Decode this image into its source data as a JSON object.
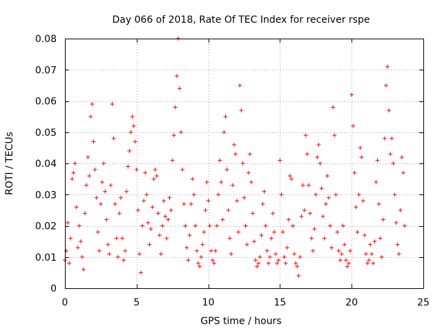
{
  "chart_data": {
    "type": "scatter",
    "title": "Day 066 of 2018, Rate Of TEC Index for receiver rspe",
    "xlabel": "GPS time / hours",
    "ylabel": "ROTI / TECUs",
    "xlim": [
      0,
      25
    ],
    "ylim": [
      0,
      0.08
    ],
    "x_ticks": [
      0,
      5,
      10,
      15,
      20,
      25
    ],
    "x_tick_labels": [
      "0",
      "5",
      "10",
      "15",
      "20",
      "25"
    ],
    "y_ticks": [
      0,
      0.01,
      0.02,
      0.03,
      0.04,
      0.05,
      0.06,
      0.07,
      0.08
    ],
    "y_tick_labels": [
      "0",
      "0.01",
      "0.02",
      "0.03",
      "0.04",
      "0.05",
      "0.06",
      "0.07",
      "0.08"
    ],
    "grid": true,
    "marker": "+",
    "marker_color": "#ff0000",
    "series": [
      {
        "name": "rspe",
        "points": [
          [
            0.0,
            0.009
          ],
          [
            0.1,
            0.012
          ],
          [
            0.2,
            0.021
          ],
          [
            0.3,
            0.008
          ],
          [
            0.4,
            0.016
          ],
          [
            0.5,
            0.035
          ],
          [
            0.6,
            0.037
          ],
          [
            0.7,
            0.04
          ],
          [
            0.8,
            0.026
          ],
          [
            0.9,
            0.013
          ],
          [
            1.0,
            0.02
          ],
          [
            1.1,
            0.015
          ],
          [
            1.2,
            0.01
          ],
          [
            1.3,
            0.006
          ],
          [
            1.4,
            0.024
          ],
          [
            1.5,
            0.033
          ],
          [
            1.6,
            0.042
          ],
          [
            1.7,
            0.036
          ],
          [
            1.8,
            0.055
          ],
          [
            1.9,
            0.059
          ],
          [
            2.0,
            0.047
          ],
          [
            2.1,
            0.038
          ],
          [
            2.2,
            0.029
          ],
          [
            2.3,
            0.018
          ],
          [
            2.4,
            0.012
          ],
          [
            2.5,
            0.027
          ],
          [
            2.6,
            0.034
          ],
          [
            2.7,
            0.04
          ],
          [
            2.8,
            0.031
          ],
          [
            2.9,
            0.022
          ],
          [
            3.0,
            0.014
          ],
          [
            3.1,
            0.011
          ],
          [
            3.2,
            0.033
          ],
          [
            3.3,
            0.059
          ],
          [
            3.4,
            0.048
          ],
          [
            3.5,
            0.027
          ],
          [
            3.6,
            0.016
          ],
          [
            3.7,
            0.01
          ],
          [
            3.8,
            0.024
          ],
          [
            3.9,
            0.029
          ],
          [
            4.0,
            0.016
          ],
          [
            4.1,
            0.009
          ],
          [
            4.2,
            0.012
          ],
          [
            4.3,
            0.031
          ],
          [
            4.4,
            0.039
          ],
          [
            4.5,
            0.044
          ],
          [
            4.6,
            0.05
          ],
          [
            4.7,
            0.055
          ],
          [
            4.8,
            0.052
          ],
          [
            4.9,
            0.047
          ],
          [
            5.0,
            0.038
          ],
          [
            5.1,
            0.025
          ],
          [
            5.2,
            0.011
          ],
          [
            5.3,
            0.005
          ],
          [
            5.4,
            0.02
          ],
          [
            5.5,
            0.028
          ],
          [
            5.6,
            0.037
          ],
          [
            5.7,
            0.03
          ],
          [
            5.8,
            0.021
          ],
          [
            5.9,
            0.014
          ],
          [
            6.0,
            0.019
          ],
          [
            6.1,
            0.026
          ],
          [
            6.2,
            0.035
          ],
          [
            6.3,
            0.038
          ],
          [
            6.4,
            0.036
          ],
          [
            6.5,
            0.024
          ],
          [
            6.6,
            0.017
          ],
          [
            6.7,
            0.011
          ],
          [
            6.8,
            0.02
          ],
          [
            6.9,
            0.028
          ],
          [
            7.0,
            0.023
          ],
          [
            7.1,
            0.016
          ],
          [
            7.2,
            0.022
          ],
          [
            7.3,
            0.029
          ],
          [
            7.4,
            0.025
          ],
          [
            7.5,
            0.041
          ],
          [
            7.6,
            0.049
          ],
          [
            7.7,
            0.058
          ],
          [
            7.8,
            0.068
          ],
          [
            7.9,
            0.08
          ],
          [
            8.0,
            0.064
          ],
          [
            8.1,
            0.05
          ],
          [
            8.2,
            0.038
          ],
          [
            8.3,
            0.027
          ],
          [
            8.4,
            0.02
          ],
          [
            8.5,
            0.013
          ],
          [
            8.6,
            0.009
          ],
          [
            8.7,
            0.017
          ],
          [
            8.8,
            0.027
          ],
          [
            8.9,
            0.035
          ],
          [
            9.0,
            0.03
          ],
          [
            9.1,
            0.02
          ],
          [
            9.2,
            0.012
          ],
          [
            9.3,
            0.008
          ],
          [
            9.4,
            0.007
          ],
          [
            9.5,
            0.01
          ],
          [
            9.6,
            0.014
          ],
          [
            9.7,
            0.018
          ],
          [
            9.8,
            0.025
          ],
          [
            9.9,
            0.034
          ],
          [
            10.0,
            0.028
          ],
          [
            10.1,
            0.02
          ],
          [
            10.2,
            0.012
          ],
          [
            10.3,
            0.009
          ],
          [
            10.4,
            0.008
          ],
          [
            10.5,
            0.012
          ],
          [
            10.6,
            0.02
          ],
          [
            10.7,
            0.03
          ],
          [
            10.8,
            0.041
          ],
          [
            10.9,
            0.034
          ],
          [
            11.0,
            0.022
          ],
          [
            11.1,
            0.05
          ],
          [
            11.2,
            0.055
          ],
          [
            11.3,
            0.038
          ],
          [
            11.4,
            0.025
          ],
          [
            11.5,
            0.016
          ],
          [
            11.6,
            0.011
          ],
          [
            11.7,
            0.033
          ],
          [
            11.8,
            0.046
          ],
          [
            11.9,
            0.043
          ],
          [
            12.0,
            0.028
          ],
          [
            12.1,
            0.018
          ],
          [
            12.2,
            0.065
          ],
          [
            12.3,
            0.057
          ],
          [
            12.4,
            0.04
          ],
          [
            12.5,
            0.029
          ],
          [
            12.6,
            0.02
          ],
          [
            12.7,
            0.014
          ],
          [
            12.8,
            0.037
          ],
          [
            12.9,
            0.043
          ],
          [
            13.0,
            0.034
          ],
          [
            13.1,
            0.024
          ],
          [
            13.2,
            0.015
          ],
          [
            13.3,
            0.009
          ],
          [
            13.4,
            0.007
          ],
          [
            13.5,
            0.008
          ],
          [
            13.6,
            0.01
          ],
          [
            13.7,
            0.017
          ],
          [
            13.8,
            0.027
          ],
          [
            13.9,
            0.031
          ],
          [
            14.0,
            0.02
          ],
          [
            14.1,
            0.012
          ],
          [
            14.2,
            0.008
          ],
          [
            14.3,
            0.01
          ],
          [
            14.4,
            0.016
          ],
          [
            14.5,
            0.024
          ],
          [
            14.6,
            0.018
          ],
          [
            14.7,
            0.011
          ],
          [
            14.8,
            0.008
          ],
          [
            14.9,
            0.009
          ],
          [
            15.0,
            0.041
          ],
          [
            15.1,
            0.03
          ],
          [
            15.2,
            0.018
          ],
          [
            15.3,
            0.01
          ],
          [
            15.4,
            0.008
          ],
          [
            15.5,
            0.013
          ],
          [
            15.6,
            0.022
          ],
          [
            15.7,
            0.036
          ],
          [
            15.8,
            0.035
          ],
          [
            15.9,
            0.02
          ],
          [
            16.0,
            0.011
          ],
          [
            16.1,
            0.008
          ],
          [
            16.2,
            0.007
          ],
          [
            16.3,
            0.004
          ],
          [
            16.4,
            0.01
          ],
          [
            16.5,
            0.023
          ],
          [
            16.6,
            0.033
          ],
          [
            16.7,
            0.025
          ],
          [
            16.8,
            0.049
          ],
          [
            16.9,
            0.043
          ],
          [
            17.0,
            0.033
          ],
          [
            17.1,
            0.024
          ],
          [
            17.2,
            0.016
          ],
          [
            17.3,
            0.012
          ],
          [
            17.4,
            0.019
          ],
          [
            17.5,
            0.03
          ],
          [
            17.6,
            0.042
          ],
          [
            17.7,
            0.046
          ],
          [
            17.8,
            0.04
          ],
          [
            17.9,
            0.032
          ],
          [
            18.0,
            0.023
          ],
          [
            18.1,
            0.016
          ],
          [
            18.2,
            0.027
          ],
          [
            18.3,
            0.036
          ],
          [
            18.4,
            0.029
          ],
          [
            18.5,
            0.02
          ],
          [
            18.6,
            0.013
          ],
          [
            18.7,
            0.058
          ],
          [
            18.8,
            0.049
          ],
          [
            18.9,
            0.03
          ],
          [
            19.0,
            0.018
          ],
          [
            19.1,
            0.012
          ],
          [
            19.2,
            0.009
          ],
          [
            19.3,
            0.011
          ],
          [
            19.4,
            0.02
          ],
          [
            19.5,
            0.014
          ],
          [
            19.6,
            0.009
          ],
          [
            19.7,
            0.007
          ],
          [
            19.8,
            0.008
          ],
          [
            19.9,
            0.012
          ],
          [
            20.0,
            0.062
          ],
          [
            20.1,
            0.052
          ],
          [
            20.2,
            0.037
          ],
          [
            20.3,
            0.026
          ],
          [
            20.4,
            0.018
          ],
          [
            20.5,
            0.03
          ],
          [
            20.6,
            0.045
          ],
          [
            20.7,
            0.042
          ],
          [
            20.8,
            0.028
          ],
          [
            20.9,
            0.017
          ],
          [
            21.0,
            0.011
          ],
          [
            21.1,
            0.008
          ],
          [
            21.2,
            0.009
          ],
          [
            21.3,
            0.014
          ],
          [
            21.4,
            0.011
          ],
          [
            21.5,
            0.008
          ],
          [
            21.6,
            0.015
          ],
          [
            21.7,
            0.034
          ],
          [
            21.8,
            0.041
          ],
          [
            21.9,
            0.027
          ],
          [
            22.0,
            0.016
          ],
          [
            22.1,
            0.01
          ],
          [
            22.2,
            0.022
          ],
          [
            22.3,
            0.048
          ],
          [
            22.4,
            0.065
          ],
          [
            22.5,
            0.071
          ],
          [
            22.6,
            0.057
          ],
          [
            22.7,
            0.043
          ],
          [
            22.8,
            0.048
          ],
          [
            22.9,
            0.04
          ],
          [
            23.0,
            0.03
          ],
          [
            23.1,
            0.021
          ],
          [
            23.2,
            0.014
          ],
          [
            23.3,
            0.011
          ],
          [
            23.4,
            0.025
          ],
          [
            23.5,
            0.042
          ],
          [
            23.6,
            0.037
          ],
          [
            23.7,
            0.02
          ]
        ]
      }
    ]
  }
}
